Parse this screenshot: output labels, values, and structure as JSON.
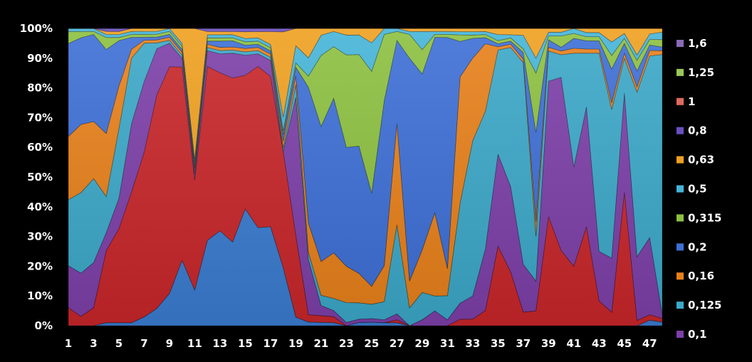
{
  "chart_data": {
    "type": "area",
    "stacked": "percent",
    "title": "",
    "xlabel": "",
    "ylabel": "",
    "ylim": [
      0,
      100
    ],
    "grid": false,
    "legend_position": "right",
    "x": [
      1,
      2,
      3,
      4,
      5,
      6,
      7,
      8,
      9,
      10,
      11,
      12,
      13,
      14,
      15,
      16,
      17,
      18,
      19,
      20,
      21,
      22,
      23,
      24,
      25,
      26,
      27,
      28,
      29,
      30,
      31,
      32,
      33,
      34,
      35,
      36,
      37,
      38,
      39,
      40,
      41,
      42,
      43,
      44,
      45,
      46,
      47,
      48
    ],
    "x_tick_labels": [
      "1",
      "3",
      "5",
      "7",
      "9",
      "11",
      "13",
      "15",
      "17",
      "19",
      "21",
      "23",
      "25",
      "27",
      "29",
      "31",
      "33",
      "35",
      "37",
      "39",
      "41",
      "43",
      "45",
      "47"
    ],
    "y_tick_labels": [
      "0%",
      "10%",
      "20%",
      "30%",
      "40%",
      "50%",
      "60%",
      "70%",
      "80%",
      "90%",
      "100%"
    ],
    "series": [
      {
        "name": "0,063",
        "color": "#3a7cd0",
        "values": [
          0,
          0,
          0,
          1,
          1,
          1,
          3,
          6,
          11,
          22,
          12,
          27,
          30,
          27,
          35,
          31,
          31,
          17,
          2,
          1,
          1,
          1,
          0,
          1,
          1,
          1,
          1,
          0,
          0,
          0,
          0,
          0,
          0,
          0,
          0,
          0,
          0,
          0,
          0,
          0,
          0,
          0,
          0,
          0,
          0,
          0,
          1,
          1
        ]
      },
      {
        "name": "0,08",
        "color": "#c8262a",
        "values": [
          6,
          3,
          6,
          24,
          31,
          44,
          56,
          74,
          77,
          65,
          37,
          55,
          50,
          53,
          40,
          51,
          47,
          34,
          19,
          2,
          2,
          2,
          0,
          0,
          0,
          0,
          1,
          0,
          0,
          0,
          0,
          2,
          2,
          5,
          26,
          17,
          4,
          1,
          29,
          20,
          12,
          24,
          6,
          2,
          27,
          1,
          1,
          1
        ]
      },
      {
        "name": "0,1",
        "color": "#7d3fa8",
        "values": [
          14,
          14,
          15,
          6,
          10,
          23,
          24,
          16,
          8,
          3,
          2,
          5,
          6,
          8,
          6,
          4,
          5,
          0,
          32,
          15,
          3,
          2,
          1,
          1,
          1,
          1,
          2,
          0,
          2,
          5,
          2,
          5,
          7,
          20,
          30,
          27,
          14,
          2,
          36,
          46,
          20,
          29,
          12,
          8,
          20,
          12,
          14,
          1
        ]
      },
      {
        "name": "0,125",
        "color": "#3ba8c8",
        "values": [
          22,
          26,
          28,
          12,
          23,
          22,
          13,
          2,
          1,
          1,
          1,
          1,
          1,
          1,
          1,
          1,
          1,
          1,
          3,
          2,
          3,
          4,
          6,
          5,
          4,
          6,
          30,
          6,
          9,
          5,
          8,
          31,
          47,
          45,
          34,
          44,
          59,
          3,
          8,
          6,
          23,
          13,
          48,
          22,
          7,
          31,
          33,
          70
        ]
      },
      {
        "name": "0,16",
        "color": "#e8801a",
        "values": [
          21,
          22,
          19,
          21,
          14,
          3,
          1,
          1,
          1,
          1,
          1,
          1,
          1,
          1,
          1,
          1,
          1,
          2,
          2,
          8,
          10,
          15,
          11,
          9,
          5,
          12,
          34,
          9,
          14,
          28,
          9,
          39,
          25,
          22,
          1,
          1,
          1,
          1,
          1,
          1,
          1,
          1,
          1,
          1,
          1,
          1,
          1,
          1
        ]
      },
      {
        "name": "0,2",
        "color": "#3d6fd6",
        "values": [
          31,
          28,
          29,
          28,
          15,
          4,
          1,
          1,
          1,
          1,
          1,
          1,
          2,
          2,
          1,
          1,
          1,
          2,
          2,
          37,
          40,
          51,
          36,
          39,
          26,
          55,
          28,
          75,
          58,
          59,
          77,
          11,
          6,
          2,
          1,
          1,
          2,
          6,
          2,
          1,
          2,
          2,
          2,
          5,
          2,
          3,
          1,
          1
        ]
      },
      {
        "name": "0,315",
        "color": "#8cc040",
        "values": [
          4,
          2,
          1,
          4,
          1,
          1,
          1,
          1,
          1,
          1,
          1,
          1,
          1,
          1,
          1,
          1,
          1,
          1,
          1,
          3,
          21,
          17,
          28,
          28,
          34,
          22,
          3,
          8,
          8,
          1,
          1,
          2,
          1,
          1,
          1,
          1,
          1,
          4,
          1,
          3,
          1,
          1,
          1,
          2,
          1,
          2,
          1,
          2
        ]
      },
      {
        "name": "0,5",
        "color": "#45b4d8",
        "values": [
          1,
          1,
          1,
          1,
          1,
          1,
          1,
          1,
          1,
          1,
          1,
          1,
          1,
          1,
          1,
          1,
          1,
          4,
          4,
          5,
          6,
          5,
          6,
          6,
          8,
          2,
          1,
          1,
          6,
          1,
          1,
          1,
          1,
          1,
          2,
          1,
          4,
          1,
          1,
          1,
          1,
          1,
          1,
          2,
          1,
          1,
          1,
          2
        ]
      },
      {
        "name": "0,63",
        "color": "#f0a020",
        "values": [
          0,
          0,
          0,
          1,
          1,
          1,
          1,
          1,
          0,
          5,
          44,
          1,
          1,
          1,
          2,
          2,
          4,
          25,
          4,
          8,
          2,
          1,
          2,
          2,
          4,
          0,
          0,
          1,
          1,
          1,
          1,
          1,
          1,
          1,
          2,
          2,
          2,
          2,
          1,
          1,
          0,
          1,
          1,
          2,
          1,
          5,
          1,
          1
        ]
      },
      {
        "name": "0,8",
        "color": "#6a4fc0",
        "values": [
          0,
          0,
          0,
          1,
          1,
          0,
          0,
          0,
          0,
          0,
          0,
          1,
          1,
          1,
          1,
          1,
          1,
          1,
          0,
          0,
          0,
          0,
          0,
          0,
          0,
          0,
          0,
          0,
          0,
          0,
          0,
          0,
          0,
          0,
          0,
          0,
          0,
          0,
          0,
          0,
          0,
          0,
          0,
          0,
          0,
          0,
          0,
          0
        ]
      },
      {
        "name": "1",
        "color": "#e06a60",
        "values": [
          0,
          0,
          0,
          0,
          0,
          0,
          0,
          0,
          0,
          0,
          0,
          0,
          0,
          0,
          0,
          0,
          0,
          0,
          0,
          0,
          0,
          0,
          0,
          0,
          0,
          0,
          0,
          0,
          0,
          0,
          0,
          0,
          0,
          0,
          0,
          0,
          0,
          0,
          0,
          0,
          0,
          0,
          0,
          0,
          0,
          0,
          0,
          0
        ]
      },
      {
        "name": "1,25",
        "color": "#9ac858",
        "values": [
          0,
          0,
          0,
          0,
          0,
          0,
          0,
          0,
          0,
          0,
          0,
          0,
          0,
          0,
          0,
          0,
          0,
          0,
          0,
          0,
          0,
          0,
          0,
          0,
          0,
          0,
          0,
          0,
          0,
          0,
          0,
          0,
          0,
          0,
          0,
          0,
          0,
          0,
          0,
          0,
          0,
          0,
          0,
          0,
          0,
          0,
          0,
          0
        ]
      },
      {
        "name": "1,6",
        "color": "#8a6ab8",
        "values": [
          0,
          0,
          0,
          0,
          0,
          0,
          0,
          0,
          0,
          0,
          0,
          0,
          0,
          0,
          0,
          0,
          0,
          0,
          0,
          0,
          0,
          0,
          0,
          0,
          0,
          0,
          0,
          0,
          0,
          0,
          0,
          0,
          0,
          0,
          0,
          0,
          0,
          0,
          0,
          0,
          0,
          0,
          0,
          0,
          0,
          0,
          0,
          0
        ]
      }
    ],
    "legend": [
      {
        "label": "1,6",
        "color": "#8a6ab8"
      },
      {
        "label": "1,25",
        "color": "#9ac858"
      },
      {
        "label": "1",
        "color": "#e06a60"
      },
      {
        "label": "0,8",
        "color": "#6a4fc0"
      },
      {
        "label": "0,63",
        "color": "#f0a020"
      },
      {
        "label": "0,5",
        "color": "#45b4d8"
      },
      {
        "label": "0,315",
        "color": "#8cc040"
      },
      {
        "label": "0,2",
        "color": "#3d6fd6"
      },
      {
        "label": "0,16",
        "color": "#e8801a"
      },
      {
        "label": "0,125",
        "color": "#3ba8c8"
      },
      {
        "label": "0,1",
        "color": "#7d3fa8"
      }
    ],
    "background": "#000000"
  }
}
